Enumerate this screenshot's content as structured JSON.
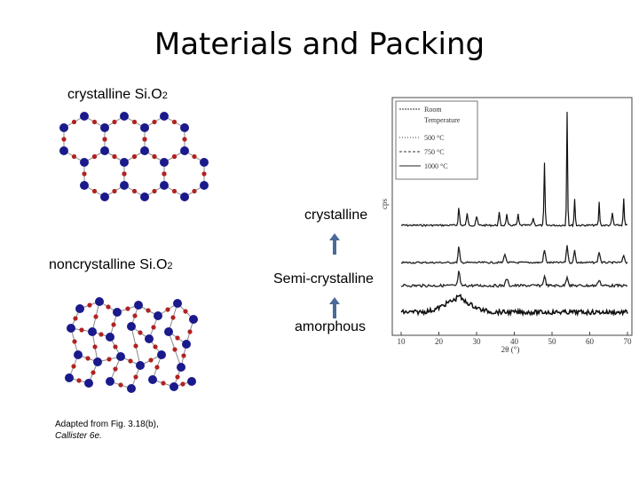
{
  "title": "Materials and Packing",
  "crystalline_label": {
    "main": "crystalline Si.O",
    "sub": "2"
  },
  "noncrystalline_label": {
    "main": "noncrystalline Si.O",
    "sub": "2"
  },
  "caption": {
    "line1": "Adapted from Fig. 3.18(b),",
    "line2": "Callister 6e."
  },
  "state_labels": {
    "crystalline": "crystalline",
    "semi": "Semi-crystalline",
    "amorphous": "amorphous"
  },
  "xrd": {
    "legend": [
      "Room",
      "Temperature",
      "500 °C",
      "750 °C",
      "1000 °C"
    ],
    "ylabel": "cps",
    "xlabel": "2θ (°)",
    "xticks": [
      "10",
      "20",
      "30",
      "40",
      "50",
      "60",
      "70"
    ]
  },
  "colors": {
    "silicon": "#1a1a8c",
    "oxygen": "#b22222",
    "arrow": "#4a6a9a"
  },
  "icons": {
    "arrow": "up-arrow-icon"
  }
}
